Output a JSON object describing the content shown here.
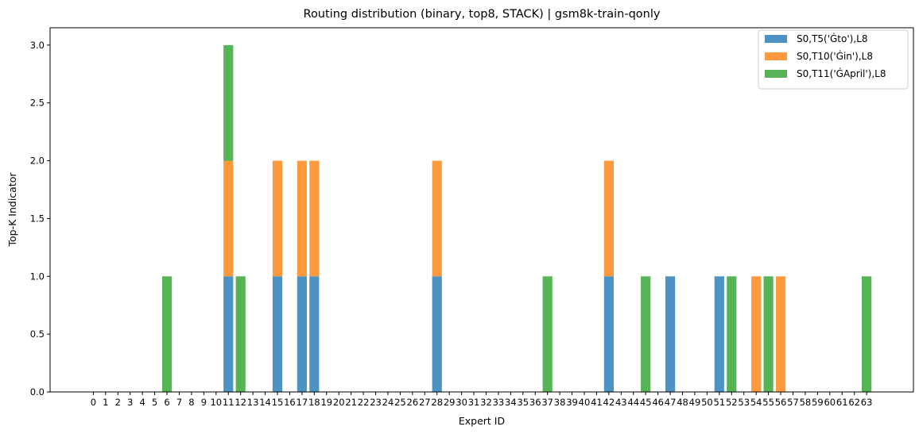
{
  "chart_data": {
    "type": "bar",
    "stacked": true,
    "title": "Routing distribution (binary, top8, STACK) | gsm8k-train-qonly",
    "xlabel": "Expert ID",
    "ylabel": "Top-K Indicator",
    "ylim": [
      0,
      3.15
    ],
    "yticks": [
      "0.0",
      "0.5",
      "1.0",
      "1.5",
      "2.0",
      "2.5",
      "3.0"
    ],
    "categories": [
      "0",
      "1",
      "2",
      "3",
      "4",
      "5",
      "6",
      "7",
      "8",
      "9",
      "10",
      "11",
      "12",
      "13",
      "14",
      "15",
      "16",
      "17",
      "18",
      "19",
      "20",
      "21",
      "22",
      "23",
      "24",
      "25",
      "26",
      "27",
      "28",
      "29",
      "30",
      "31",
      "32",
      "33",
      "34",
      "35",
      "36",
      "37",
      "38",
      "39",
      "40",
      "41",
      "42",
      "43",
      "44",
      "45",
      "46",
      "47",
      "48",
      "49",
      "50",
      "51",
      "52",
      "53",
      "54",
      "55",
      "56",
      "57",
      "58",
      "59",
      "60",
      "61",
      "62",
      "63"
    ],
    "legend_position": "top-right",
    "grid": false,
    "series": [
      {
        "name": "S0,T5('Ġto'),L8",
        "color": "#1f77b4",
        "values": [
          0,
          0,
          0,
          0,
          0,
          0,
          0,
          0,
          0,
          0,
          0,
          1,
          0,
          0,
          0,
          1,
          0,
          1,
          1,
          0,
          0,
          0,
          0,
          0,
          0,
          0,
          0,
          0,
          1,
          0,
          0,
          0,
          0,
          0,
          0,
          0,
          0,
          0,
          0,
          0,
          0,
          0,
          1,
          0,
          0,
          0,
          0,
          1,
          0,
          0,
          0,
          1,
          0,
          0,
          0,
          0,
          0,
          0,
          0,
          0,
          0,
          0,
          0,
          0
        ]
      },
      {
        "name": "S0,T10('Ġin'),L8",
        "color": "#ff7f0e",
        "values": [
          0,
          0,
          0,
          0,
          0,
          0,
          0,
          0,
          0,
          0,
          0,
          1,
          0,
          0,
          0,
          1,
          0,
          1,
          1,
          0,
          0,
          0,
          0,
          0,
          0,
          0,
          0,
          0,
          1,
          0,
          0,
          0,
          0,
          0,
          0,
          0,
          0,
          0,
          0,
          0,
          0,
          0,
          1,
          0,
          0,
          0,
          0,
          0,
          0,
          0,
          0,
          0,
          0,
          0,
          1,
          0,
          1,
          0,
          0,
          0,
          0,
          0,
          0,
          0
        ]
      },
      {
        "name": "S0,T11('ĠApril'),L8",
        "color": "#2ca02c",
        "values": [
          0,
          0,
          0,
          0,
          0,
          0,
          1,
          0,
          0,
          0,
          0,
          1,
          1,
          0,
          0,
          0,
          0,
          0,
          0,
          0,
          0,
          0,
          0,
          0,
          0,
          0,
          0,
          0,
          0,
          0,
          0,
          0,
          0,
          0,
          0,
          0,
          0,
          1,
          0,
          0,
          0,
          0,
          0,
          0,
          0,
          1,
          0,
          0,
          0,
          0,
          0,
          0,
          1,
          0,
          0,
          1,
          0,
          0,
          0,
          0,
          0,
          0,
          0,
          1
        ]
      }
    ]
  }
}
